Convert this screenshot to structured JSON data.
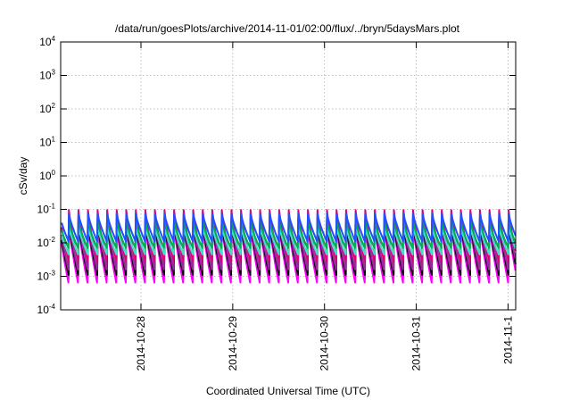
{
  "chart_data": {
    "type": "line",
    "title": "/data/run/goesPlots/archive/2014-11-01/02:00/flux/../bryn/5daysMars.plot",
    "xlabel": "Coordinated Universal Time (UTC)",
    "ylabel": "cSv/day",
    "yscale": "log",
    "ylim": [
      0.0001,
      10000
    ],
    "xlim": [
      "2014-10-27 03:00",
      "2014-11-01 02:00"
    ],
    "grid": true,
    "legend": "none",
    "y_ticks": [
      {
        "mantissa": "10",
        "exp": "-4"
      },
      {
        "mantissa": "10",
        "exp": "-3"
      },
      {
        "mantissa": "10",
        "exp": "-2"
      },
      {
        "mantissa": "10",
        "exp": "-1"
      },
      {
        "mantissa": "10",
        "exp": "0"
      },
      {
        "mantissa": "10",
        "exp": "1"
      },
      {
        "mantissa": "10",
        "exp": "2"
      },
      {
        "mantissa": "10",
        "exp": "3"
      },
      {
        "mantissa": "10",
        "exp": "4"
      }
    ],
    "x_ticks": [
      {
        "date": "2014-10-28",
        "label": "2014-10-28"
      },
      {
        "date": "2014-10-29",
        "label": "2014-10-29"
      },
      {
        "date": "2014-10-30",
        "label": "2014-10-30"
      },
      {
        "date": "2014-10-31",
        "label": "2014-10-31"
      },
      {
        "date": "2014-11-01",
        "label": "2014-11-1"
      }
    ],
    "cycle_hours": 2.5,
    "gap": {
      "start": "2014-10-27 17:50",
      "end": "2014-10-27 19:10"
    },
    "series": [
      {
        "color": "#ff00ff",
        "peak": 0.038,
        "trough": 0.00065
      },
      {
        "color": "#ff00ff",
        "peak": 0.034,
        "trough": 0.00085
      },
      {
        "color": "#000000",
        "peak": 0.04,
        "trough": 0.0011
      },
      {
        "color": "#9b2aa0",
        "peak": 0.055,
        "trough": 0.0016
      },
      {
        "color": "#e0007a",
        "peak": 0.095,
        "trough": 0.0028
      },
      {
        "color": "#40e0c8",
        "peak": 0.03,
        "trough": 0.0045
      },
      {
        "color": "#00b050",
        "peak": 0.045,
        "trough": 0.007
      },
      {
        "color": "#2050ff",
        "peak": 0.075,
        "trough": 0.011
      }
    ]
  }
}
